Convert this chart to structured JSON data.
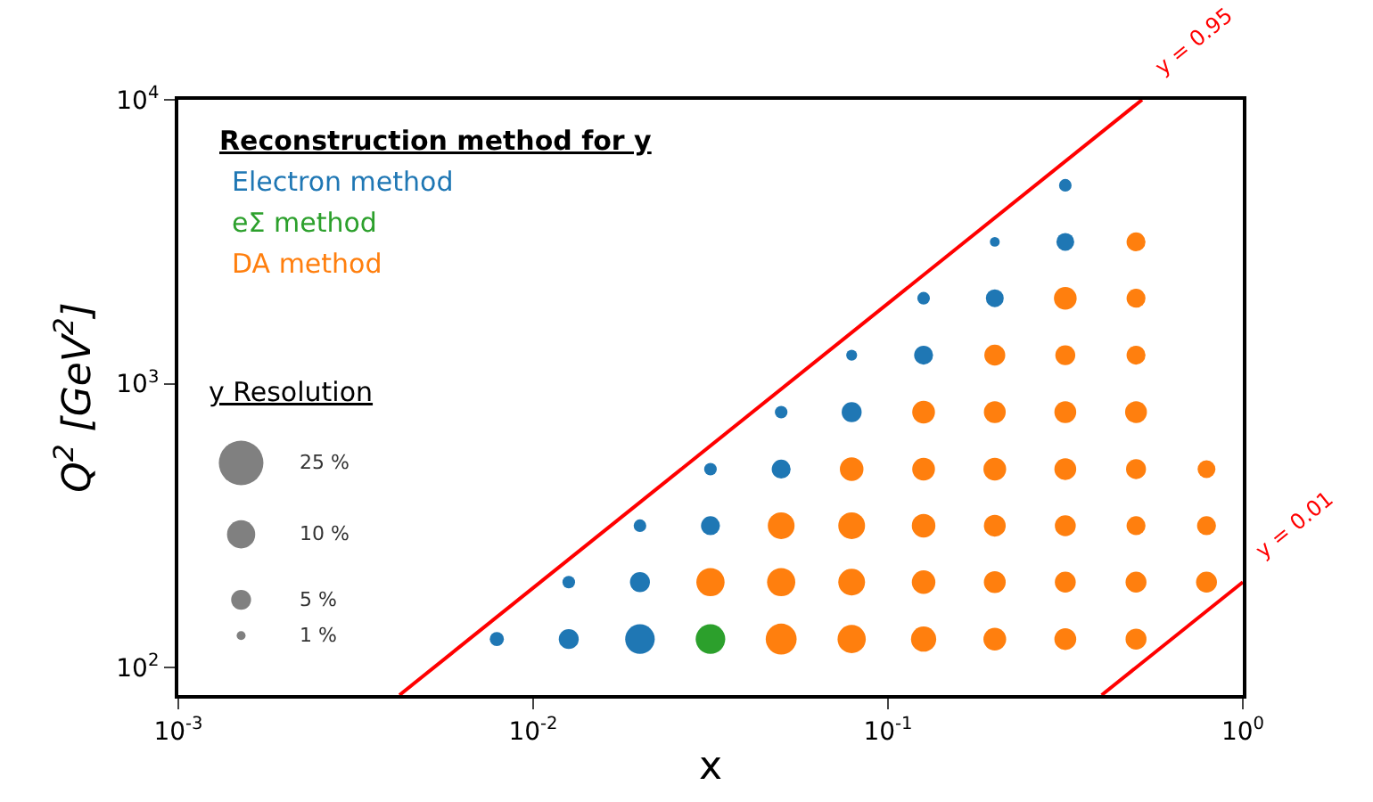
{
  "chart_data": {
    "type": "bubble",
    "xlabel": "x",
    "ylabel": "Q$^{2}$ [GeV$^{2}$]",
    "legend_title": "Reconstruction method for y",
    "legend": "top left",
    "log": "xy",
    "xlim": [
      0.001,
      1
    ],
    "ylim": [
      80,
      10000
    ],
    "xticks": [
      {
        "value": 0.001,
        "label": "10$^{-3}$"
      },
      {
        "value": 0.01,
        "label": "10$^{-2}$"
      },
      {
        "value": 0.1,
        "label": "10$^{-1}$"
      },
      {
        "value": 1,
        "label": "10$^{0}$"
      }
    ],
    "yticks": [
      {
        "value": 100,
        "label": "10$^{2}$"
      },
      {
        "value": 1000,
        "label": "10$^{3}$"
      },
      {
        "value": 10000,
        "label": "10$^{4}$"
      }
    ],
    "size_legend": [
      {
        "value": 25,
        "label": "25 %"
      },
      {
        "value": 10,
        "label": "10 %"
      },
      {
        "value": 5,
        "label": "5 %"
      },
      {
        "value": 1,
        "label": "1 %"
      }
    ],
    "series": [
      {
        "name": "Electron method",
        "color": "#1f77b4",
        "x": [
          0.0079,
          0.0126,
          0.02,
          0.0126,
          0.02,
          0.02,
          0.0316,
          0.0316,
          0.05,
          0.05,
          0.079,
          0.079,
          0.126,
          0.126,
          0.2,
          0.2,
          0.316,
          0.316
        ],
        "values": [
          126,
          126,
          126,
          200,
          200,
          316,
          316,
          500,
          500,
          794,
          794,
          1260,
          1260,
          2000,
          2000,
          3160,
          3160,
          5000
        ],
        "sizes": [
          2.5,
          5,
          11,
          2,
          5,
          2,
          4.5,
          2,
          4.5,
          2,
          5,
          1.5,
          4.5,
          2,
          4,
          1.2,
          4,
          2
        ]
      },
      {
        "name": "eΣ method",
        "color": "#2ca02c",
        "x": [
          0.0316
        ],
        "values": [
          126
        ],
        "sizes": [
          11
        ]
      },
      {
        "name": "DA method",
        "color": "#ff7f0e",
        "x": [
          0.05,
          0.079,
          0.126,
          0.2,
          0.316,
          0.5,
          0.0316,
          0.05,
          0.079,
          0.126,
          0.2,
          0.316,
          0.5,
          0.79,
          0.05,
          0.079,
          0.126,
          0.2,
          0.316,
          0.5,
          0.79,
          0.079,
          0.126,
          0.2,
          0.316,
          0.5,
          0.79,
          0.126,
          0.2,
          0.316,
          0.5,
          0.2,
          0.316,
          0.5,
          0.316,
          0.5,
          0.5
        ],
        "values": [
          126,
          126,
          126,
          126,
          126,
          126,
          200,
          200,
          200,
          200,
          200,
          200,
          200,
          200,
          316,
          316,
          316,
          316,
          316,
          316,
          316,
          500,
          500,
          500,
          500,
          500,
          500,
          794,
          794,
          794,
          794,
          1260,
          1260,
          1260,
          2000,
          2000,
          3160
        ],
        "sizes": [
          12,
          10,
          8,
          6.5,
          6,
          5.5,
          10,
          10,
          9,
          7,
          6,
          5.5,
          5.5,
          5.5,
          9,
          9,
          7,
          6,
          5.5,
          4.5,
          4.5,
          7,
          6.5,
          6.5,
          6,
          5,
          4,
          6.5,
          6,
          6,
          6,
          5.5,
          5,
          4.5,
          6.5,
          4.5,
          4.5
        ]
      },
      {
        "type": "line",
        "color": "#ff0000",
        "x": [
          0.0042,
          0.52
        ],
        "values": [
          80,
          10000
        ]
      },
      {
        "type": "line",
        "color": "#ff0000",
        "x": [
          0.4,
          1
        ],
        "values": [
          80,
          200
        ]
      }
    ],
    "annotations": [
      "y Resolution",
      {
        "text": "y = 0.95",
        "x": 0.52,
        "y": 10000
      },
      {
        "text": "y = 0.01",
        "x": 1,
        "y": 200
      }
    ]
  }
}
